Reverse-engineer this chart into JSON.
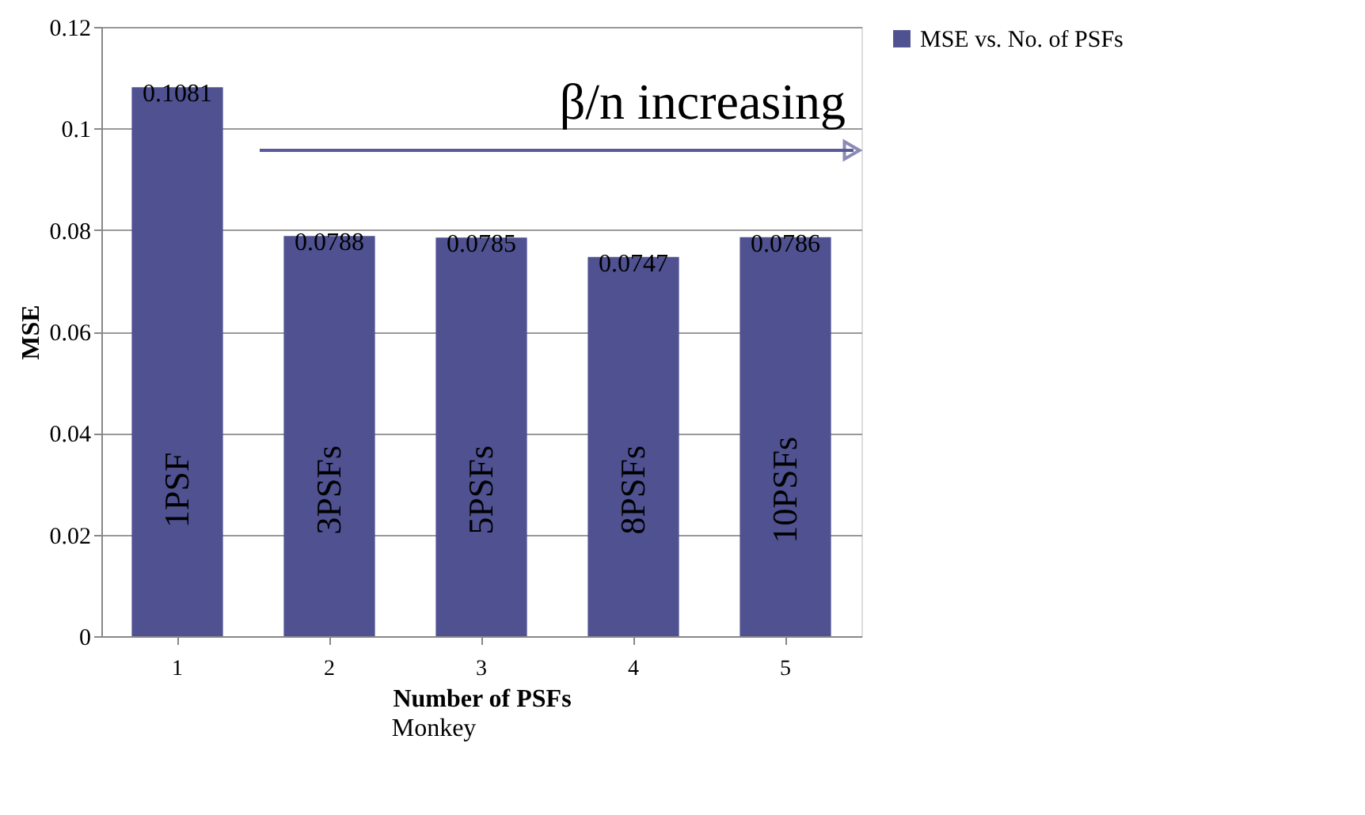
{
  "chart_data": {
    "type": "bar",
    "xlabel": "Number of PSFs",
    "ylabel": "MSE",
    "categories": [
      "1",
      "2",
      "3",
      "4",
      "5"
    ],
    "series": [
      {
        "name": "MSE vs. No. of PSFs",
        "color": "#4f5191",
        "values": [
          0.1081,
          0.0788,
          0.0785,
          0.0747,
          0.0786
        ]
      }
    ],
    "ylim": [
      0,
      0.12
    ],
    "yticks": [
      0,
      0.02,
      0.04,
      0.06,
      0.08,
      0.1,
      0.12
    ],
    "grid": "y",
    "legend": "right",
    "data_labels": true,
    "annotations": [
      "1PSF",
      "3PSFs",
      "5PSFs",
      "8PSFs",
      "10PSFs",
      "β/n increasing",
      "Monkey"
    ]
  }
}
